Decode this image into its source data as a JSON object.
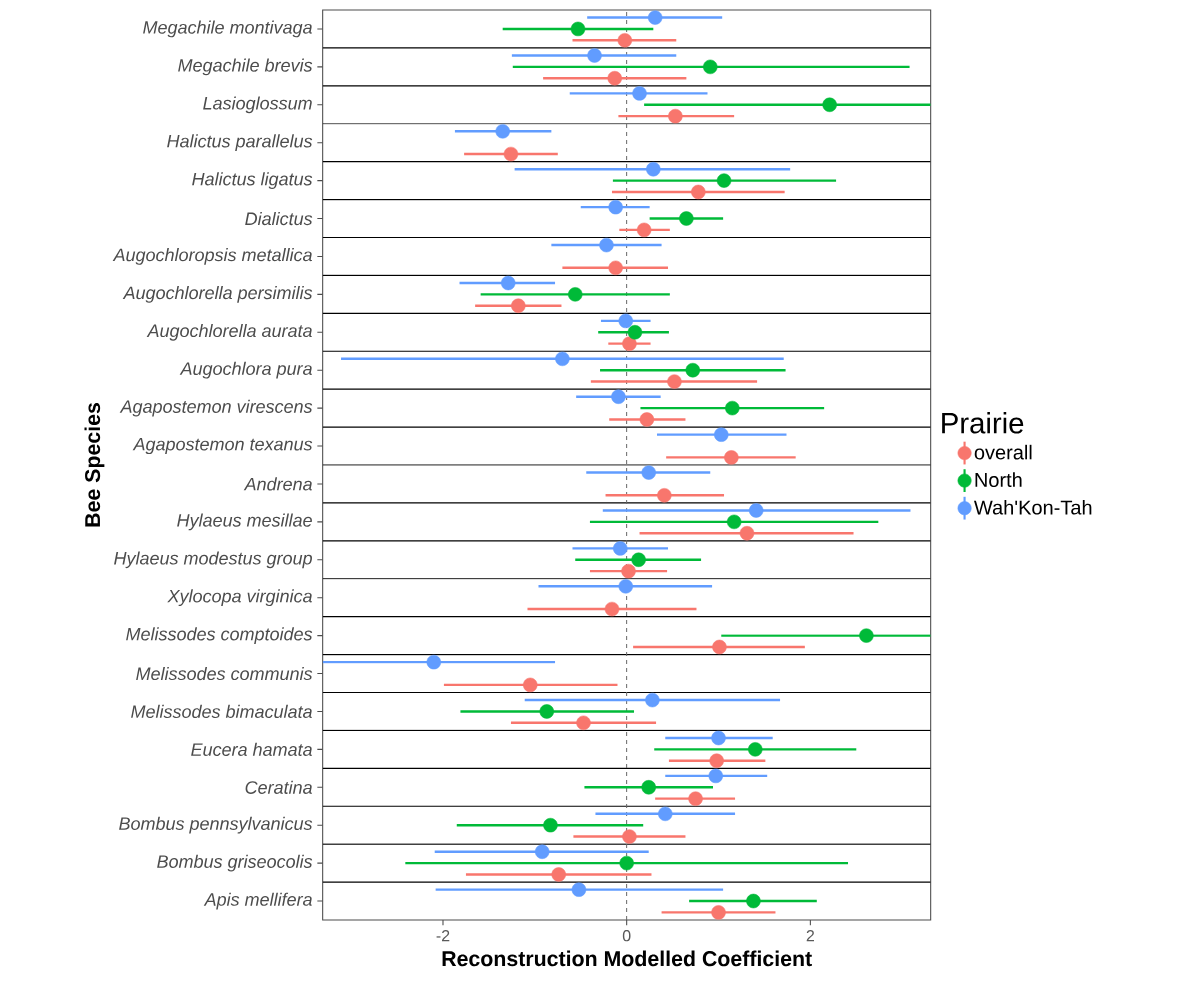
{
  "chart_data": {
    "type": "scatter",
    "orientation": "horizontal",
    "xlabel": "Reconstruction Modelled Coefficient",
    "ylabel": "Bee Species",
    "legend_title": "Prairie",
    "legend": "right",
    "marker": "circle",
    "categories": [
      "Megachile montivaga",
      "Megachile brevis",
      "Lasioglossum",
      "Halictus parallelus",
      "Halictus ligatus",
      "Dialictus",
      "Augochloropsis metallica",
      "Augochlorella persimilis",
      "Augochlorella aurata",
      "Augochlora pura",
      "Agapostemon virescens",
      "Agapostemon texanus",
      "Andrena",
      "Hylaeus mesillae",
      "Hylaeus modestus group",
      "Xylocopa virginica",
      "Melissodes comptoides",
      "Melissodes communis",
      "Melissodes bimaculata",
      "Eucera hamata",
      "Ceratina",
      "Bombus pennsylvanicus",
      "Bombus griseocolis",
      "Apis mellifera"
    ],
    "xlim": [
      -3.31,
      3.31
    ],
    "xticks": [
      -2,
      0,
      2
    ],
    "ref_lines": [
      {
        "axis": "x",
        "value": 0,
        "line_style": "dashed",
        "color": "#666666"
      }
    ],
    "series": [
      {
        "name": "overall",
        "color": "#f8766d",
        "values": [
          -0.02,
          -0.13,
          0.53,
          -1.26,
          0.78,
          0.19,
          -0.12,
          -1.18,
          0.03,
          0.52,
          0.22,
          1.14,
          0.41,
          1.31,
          0.02,
          -0.16,
          1.01,
          -1.05,
          -0.47,
          0.98,
          0.75,
          0.03,
          -0.74,
          1.0
        ],
        "errors": [
          [
            -0.59,
            0.54
          ],
          [
            -0.91,
            0.65
          ],
          [
            -0.09,
            1.17
          ],
          [
            -1.77,
            -0.75
          ],
          [
            -0.16,
            1.72
          ],
          [
            -0.08,
            0.47
          ],
          [
            -0.7,
            0.45
          ],
          [
            -1.65,
            -0.71
          ],
          [
            -0.2,
            0.26
          ],
          [
            -0.39,
            1.42
          ],
          [
            -0.19,
            0.64
          ],
          [
            0.43,
            1.84
          ],
          [
            -0.23,
            1.06
          ],
          [
            0.14,
            2.47
          ],
          [
            -0.4,
            0.44
          ],
          [
            -1.08,
            0.76
          ],
          [
            0.07,
            1.94
          ],
          [
            -1.99,
            -0.1
          ],
          [
            -1.26,
            0.32
          ],
          [
            0.46,
            1.51
          ],
          [
            0.31,
            1.18
          ],
          [
            -0.58,
            0.64
          ],
          [
            -1.75,
            0.27
          ],
          [
            0.38,
            1.62
          ]
        ]
      },
      {
        "name": "North",
        "color": "#00ba38",
        "values": [
          -0.53,
          0.91,
          2.21,
          null,
          1.06,
          0.65,
          null,
          -0.56,
          0.09,
          0.72,
          1.15,
          null,
          null,
          1.17,
          0.13,
          null,
          2.61,
          null,
          -0.87,
          1.4,
          0.24,
          -0.83,
          0.0,
          1.38
        ],
        "errors": [
          [
            -1.35,
            0.29
          ],
          [
            -1.24,
            3.08
          ],
          [
            0.19,
            3.31
          ],
          null,
          [
            -0.15,
            2.28
          ],
          [
            0.25,
            1.05
          ],
          null,
          [
            -1.59,
            0.47
          ],
          [
            -0.31,
            0.46
          ],
          [
            -0.29,
            1.73
          ],
          [
            0.15,
            2.15
          ],
          null,
          null,
          [
            -0.4,
            2.74
          ],
          [
            -0.56,
            0.81
          ],
          null,
          [
            1.03,
            3.31
          ],
          null,
          [
            -1.81,
            0.08
          ],
          [
            0.3,
            2.5
          ],
          [
            -0.46,
            0.94
          ],
          [
            -1.85,
            0.18
          ],
          [
            -2.41,
            2.41
          ],
          [
            0.68,
            2.07
          ]
        ]
      },
      {
        "name": "Wah'Kon-Tah",
        "color": "#619cff",
        "values": [
          0.31,
          -0.35,
          0.14,
          -1.35,
          0.29,
          -0.12,
          -0.22,
          -1.29,
          -0.01,
          -0.7,
          -0.09,
          1.03,
          0.24,
          1.41,
          -0.07,
          -0.01,
          null,
          -2.1,
          0.28,
          1.0,
          0.97,
          0.42,
          -0.92,
          -0.52
        ],
        "errors": [
          [
            -0.43,
            1.04
          ],
          [
            -1.25,
            0.54
          ],
          [
            -0.62,
            0.88
          ],
          [
            -1.87,
            -0.82
          ],
          [
            -1.22,
            1.78
          ],
          [
            -0.5,
            0.25
          ],
          [
            -0.82,
            0.38
          ],
          [
            -1.82,
            -0.78
          ],
          [
            -0.28,
            0.26
          ],
          [
            -3.11,
            1.71
          ],
          [
            -0.55,
            0.37
          ],
          [
            0.33,
            1.74
          ],
          [
            -0.44,
            0.91
          ],
          [
            -0.26,
            3.09
          ],
          [
            -0.59,
            0.45
          ],
          [
            -0.96,
            0.93
          ],
          null,
          [
            -3.31,
            -0.78
          ],
          [
            -1.11,
            1.67
          ],
          [
            0.42,
            1.59
          ],
          [
            0.42,
            1.53
          ],
          [
            -0.34,
            1.18
          ],
          [
            -2.09,
            0.24
          ],
          [
            -2.08,
            1.05
          ]
        ]
      }
    ]
  }
}
